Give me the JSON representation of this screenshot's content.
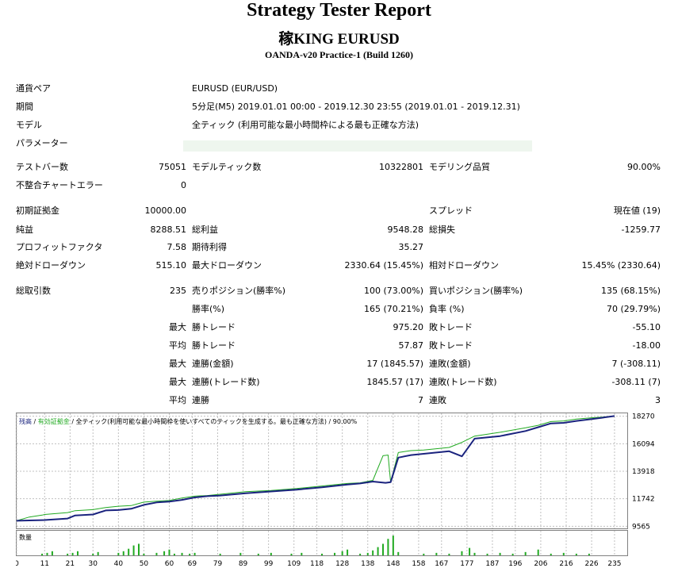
{
  "header": {
    "title": "Strategy Tester Report",
    "subtitle": "稼KING EURUSD",
    "server": "OANDA-v20 Practice-1 (Build 1260)"
  },
  "info": {
    "symbol_label": "通貨ペア",
    "symbol_value": "EURUSD (EUR/USD)",
    "period_label": "期間",
    "period_value": "5分足(M5) 2019.01.01 00:00 - 2019.12.30 23:55 (2019.01.01 - 2019.12.31)",
    "model_label": "モデル",
    "model_value": "全ティック (利用可能な最小時間枠による最も正確な方法)",
    "params_label": "パラメーター"
  },
  "stats": {
    "bars_label": "テストバー数",
    "bars": "75051",
    "ticks_label": "モデルティック数",
    "ticks": "10322801",
    "quality_label": "モデリング品質",
    "quality": "90.00%",
    "mismatch_label": "不整合チャートエラー",
    "mismatch": "0",
    "deposit_label": "初期証拠金",
    "deposit": "10000.00",
    "spread_label": "スプレッド",
    "spread": "現在値 (19)",
    "net_label": "純益",
    "net": "8288.51",
    "gross_profit_label": "総利益",
    "gross_profit": "9548.28",
    "gross_loss_label": "総損失",
    "gross_loss": "-1259.77",
    "pf_label": "プロフィットファクタ",
    "pf": "7.58",
    "payoff_label": "期待利得",
    "payoff": "35.27",
    "abs_dd_label": "絶対ドローダウン",
    "abs_dd": "515.10",
    "max_dd_label": "最大ドローダウン",
    "max_dd": "2330.64 (15.45%)",
    "rel_dd_label": "相対ドローダウン",
    "rel_dd": "15.45% (2330.64)",
    "trades_label": "総取引数",
    "trades": "235",
    "short_label": "売りポジション(勝率%)",
    "short": "100 (73.00%)",
    "long_label": "買いポジション(勝率%)",
    "long": "135 (68.15%)",
    "win_rate_label": "勝率(%)",
    "win_rate": "165 (70.21%)",
    "loss_rate_label": "負率 (%)",
    "loss_rate": "70 (29.79%)",
    "max_prefix": "最大",
    "avg_prefix": "平均",
    "largest_win_label": "勝トレード",
    "largest_win": "975.20",
    "largest_loss_label": "敗トレード",
    "largest_loss": "-55.10",
    "avg_win_label": "勝トレード",
    "avg_win": "57.87",
    "avg_loss_label": "敗トレード",
    "avg_loss": "-18.00",
    "max_cons_wins_label": "連勝(金額)",
    "max_cons_wins": "17 (1845.57)",
    "max_cons_losses_label": "連敗(金額)",
    "max_cons_losses": "7 (-308.11)",
    "max_cons_profit_label": "連勝(トレード数)",
    "max_cons_profit": "1845.57 (17)",
    "max_cons_loss_label": "連敗(トレード数)",
    "max_cons_loss": "-308.11 (7)",
    "avg_cons_wins_label": "連勝",
    "avg_cons_wins": "7",
    "avg_cons_losses_label": "連敗",
    "avg_cons_losses": "3"
  },
  "chart_data": {
    "type": "line",
    "legend": {
      "balance": "残高",
      "sep": " / ",
      "equity": "有効証拠金",
      "sep2": " / ",
      "model": "全ティック(利用可能な最小時間枠を使いすべてのティックを生成する。最も正確な方法)",
      "sep3": " / ",
      "quality": "90.00%"
    },
    "colors": {
      "balance": "#1a237e",
      "equity": "#22aa22",
      "grid": "#c0c0c0",
      "volume": "#22aa22"
    },
    "grid": true,
    "y_ticks": [
      9565,
      11742,
      13918,
      16094,
      18270
    ],
    "ylim": [
      9400,
      18500
    ],
    "x_ticks": [
      0,
      11,
      21,
      30,
      40,
      50,
      60,
      69,
      79,
      89,
      99,
      109,
      118,
      128,
      138,
      148,
      158,
      167,
      177,
      187,
      196,
      206,
      216,
      226,
      235
    ],
    "xlim": [
      0,
      240
    ],
    "series": [
      {
        "name": "残高",
        "x": [
          0,
          5,
          10,
          11,
          20,
          23,
          30,
          35,
          40,
          45,
          50,
          55,
          60,
          65,
          70,
          75,
          80,
          90,
          100,
          110,
          120,
          130,
          135,
          140,
          145,
          147,
          150,
          155,
          160,
          170,
          175,
          180,
          190,
          200,
          205,
          210,
          215,
          220,
          226,
          230,
          235
        ],
        "values": [
          10000,
          10030,
          10050,
          10060,
          10180,
          10420,
          10500,
          10820,
          10850,
          10950,
          11260,
          11450,
          11520,
          11650,
          11850,
          11950,
          12000,
          12180,
          12320,
          12460,
          12650,
          12870,
          12950,
          13100,
          13000,
          13050,
          15000,
          15200,
          15300,
          15500,
          15100,
          16500,
          16700,
          17100,
          17400,
          17700,
          17750,
          17900,
          18050,
          18150,
          18288
        ]
      },
      {
        "name": "有効証拠金",
        "x": [
          0,
          5,
          10,
          11,
          20,
          23,
          30,
          35,
          40,
          45,
          50,
          55,
          60,
          65,
          70,
          75,
          80,
          90,
          100,
          110,
          120,
          130,
          135,
          140,
          144,
          146,
          147,
          150,
          155,
          160,
          170,
          175,
          180,
          190,
          200,
          205,
          210,
          215,
          220,
          226,
          230,
          235
        ],
        "values": [
          10000,
          10300,
          10450,
          10500,
          10650,
          10800,
          10880,
          11050,
          11150,
          11200,
          11480,
          11550,
          11600,
          11800,
          11950,
          12000,
          12100,
          12300,
          12400,
          12550,
          12750,
          12950,
          13000,
          13200,
          15150,
          15200,
          13050,
          15400,
          15550,
          15600,
          15800,
          16200,
          16700,
          17000,
          17350,
          17550,
          17850,
          17900,
          18050,
          18150,
          18200,
          18288
        ]
      }
    ],
    "volume": {
      "label": "数量",
      "x": [
        10,
        12,
        14,
        20,
        22,
        24,
        30,
        32,
        40,
        42,
        44,
        46,
        48,
        50,
        55,
        58,
        60,
        62,
        65,
        68,
        70,
        80,
        88,
        95,
        100,
        108,
        112,
        120,
        125,
        128,
        130,
        135,
        138,
        140,
        142,
        144,
        146,
        148,
        150,
        160,
        165,
        170,
        175,
        178,
        180,
        185,
        190,
        195,
        200,
        205,
        210,
        215,
        220,
        225
      ],
      "values": [
        2,
        3,
        5,
        2,
        3,
        5,
        2,
        4,
        3,
        5,
        8,
        12,
        14,
        2,
        3,
        5,
        7,
        2,
        3,
        2,
        3,
        2,
        3,
        2,
        3,
        2,
        3,
        2,
        3,
        5,
        7,
        2,
        3,
        6,
        10,
        14,
        20,
        24,
        4,
        2,
        3,
        2,
        5,
        9,
        3,
        2,
        3,
        2,
        4,
        7,
        2,
        3,
        2,
        2
      ]
    }
  }
}
